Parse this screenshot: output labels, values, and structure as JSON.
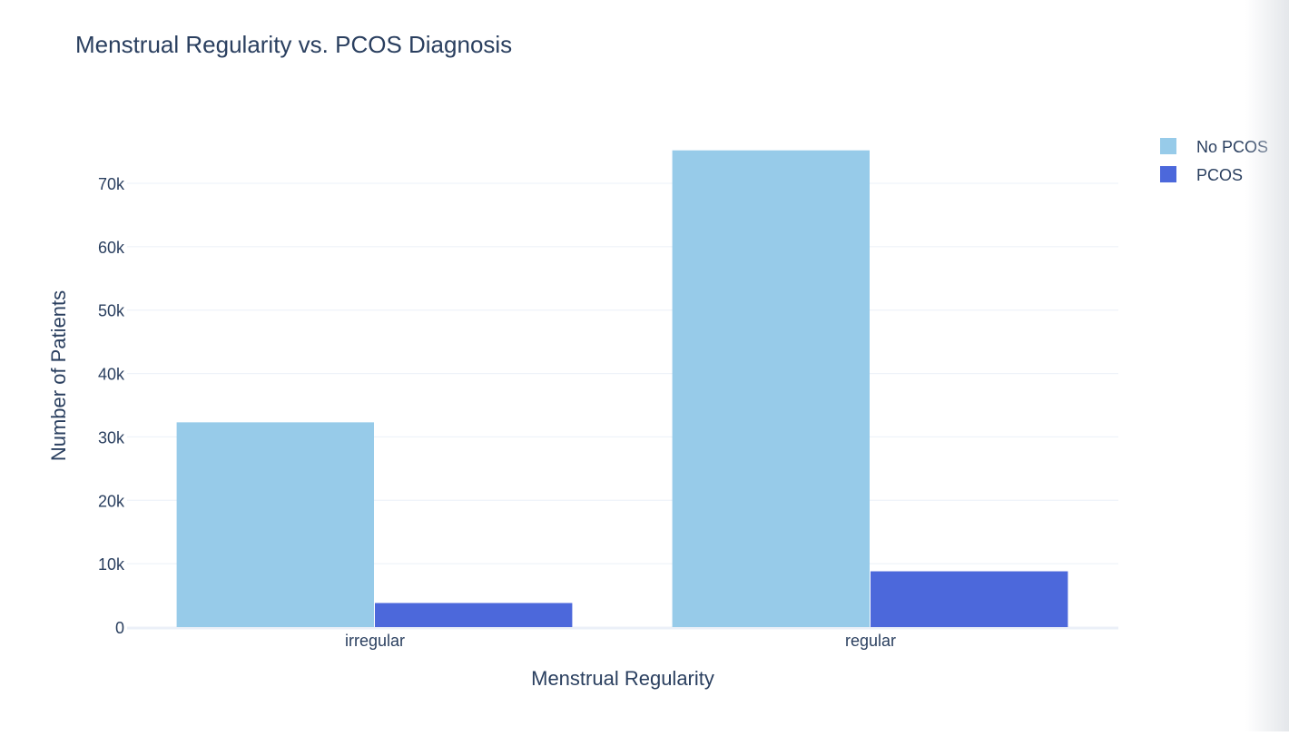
{
  "chart_data": {
    "type": "bar",
    "title": "Menstrual Regularity vs. PCOS Diagnosis",
    "xlabel": "Menstrual Regularity",
    "ylabel": "Number of Patients",
    "categories": [
      "irregular",
      "regular"
    ],
    "ylim": [
      0,
      78000
    ],
    "yticks": [
      0,
      10000,
      20000,
      30000,
      40000,
      50000,
      60000,
      70000
    ],
    "ytick_labels": [
      "0",
      "10k",
      "20k",
      "30k",
      "40k",
      "50k",
      "60k",
      "70k"
    ],
    "grid": true,
    "legend_position": "top-right",
    "series": [
      {
        "name": "No PCOS",
        "color": "#97cbe9",
        "values": [
          32300,
          75200
        ]
      },
      {
        "name": "PCOS",
        "color": "#4c68db",
        "values": [
          3800,
          8800
        ]
      }
    ]
  }
}
